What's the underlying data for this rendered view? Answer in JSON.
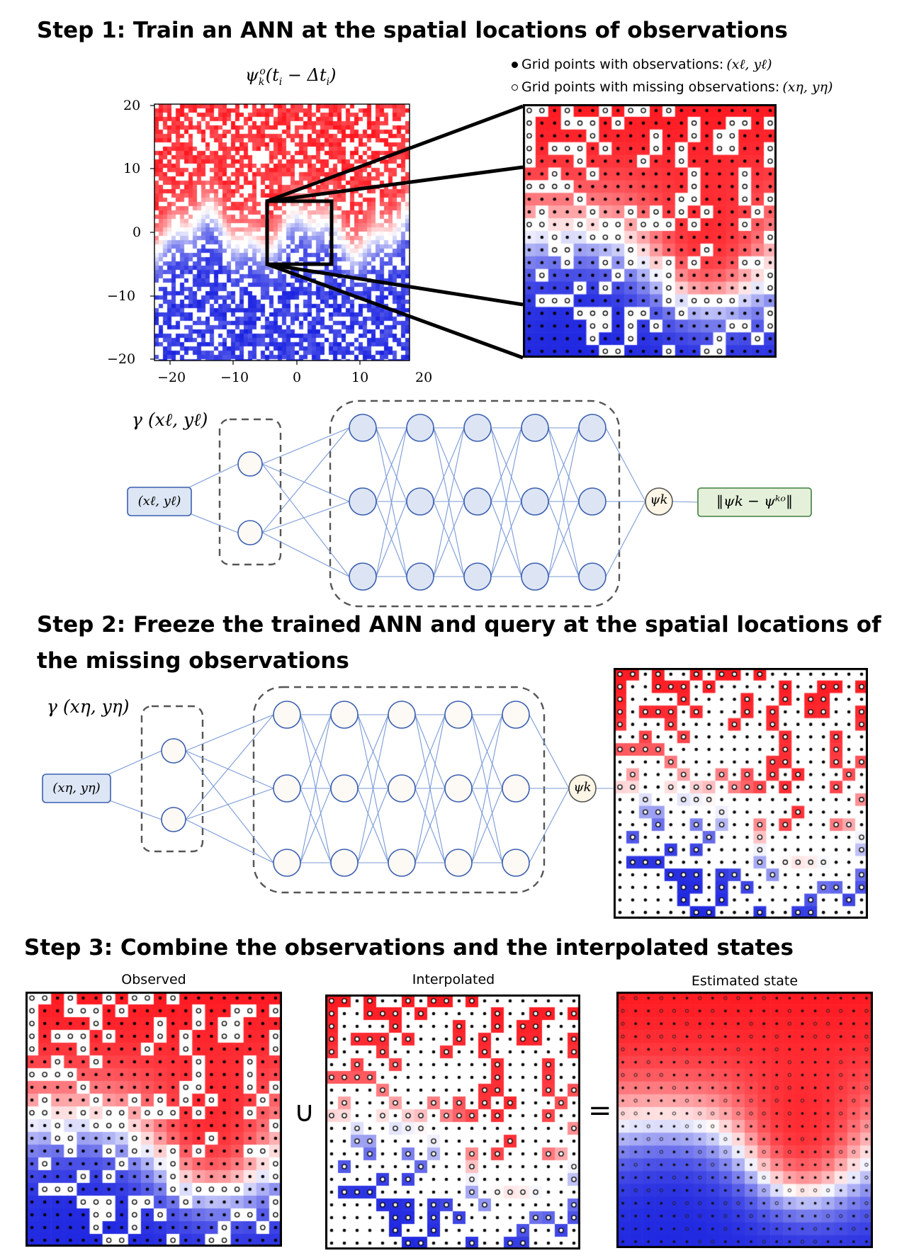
{
  "step1": {
    "title": "Step 1: Train an ANN at the spatial locations of observations",
    "plot_title": "ψᵏᵒ(tᵢ − Δtᵢ)",
    "x_ticks": [
      "−20",
      "−10",
      "0",
      "10",
      "20"
    ],
    "y_ticks": [
      "20",
      "10",
      "0",
      "−10",
      "−20"
    ],
    "legend": {
      "observed": "Grid points with observations:",
      "observed_math": "(xℓ, yℓ)",
      "missing": "Grid points with missing observations:",
      "missing_math": "(xη, yη)"
    },
    "network": {
      "encoding_label": "γ (xℓ, yℓ)",
      "input_label": "(xℓ, yℓ)",
      "output_label": "ψk",
      "loss_label": "‖ψk − ψᵏᵒ‖"
    }
  },
  "step2": {
    "title_line1": "Step 2: Freeze the trained ANN and query at the spatial locations of",
    "title_line2": "the missing observations",
    "network": {
      "encoding_label": "γ (xη, yη)",
      "input_label": "(xη, yη)",
      "output_label": "ψk"
    }
  },
  "step3": {
    "title": "Step 3: Combine the observations and the interpolated states",
    "panels": [
      "Observed",
      "Interpolated",
      "Estimated state"
    ],
    "union_symbol": "∪",
    "equals_symbol": "="
  },
  "colors": {
    "red": "#e8141c",
    "blue": "#1a22e0",
    "white": "#ffffff",
    "node_blue_fill": "#dde5f4",
    "node_light_fill": "#fdf9f4",
    "node_stroke": "#3b5fb0",
    "edge": "#7a9ad6",
    "input_box_fill": "#dce6f4",
    "loss_box_fill": "#e4f0da",
    "loss_box_stroke": "#3f7f3f"
  },
  "icons": {
    "observed_marker": "filled-dot-icon",
    "missing_marker": "hollow-circle-icon"
  }
}
